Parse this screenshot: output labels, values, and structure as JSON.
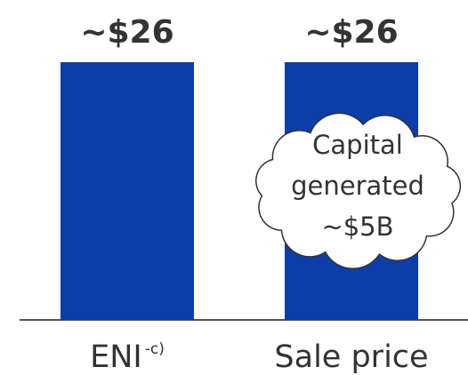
{
  "chart_data": {
    "type": "bar",
    "categories": [
      "ENI",
      "Sale price"
    ],
    "category_superscript": "-c)",
    "values": [
      26,
      26
    ],
    "value_labels": [
      "~$26",
      "~$26"
    ],
    "color": "#0b3ea8",
    "annotation": [
      "Capital",
      "generated",
      "~$5B"
    ]
  }
}
